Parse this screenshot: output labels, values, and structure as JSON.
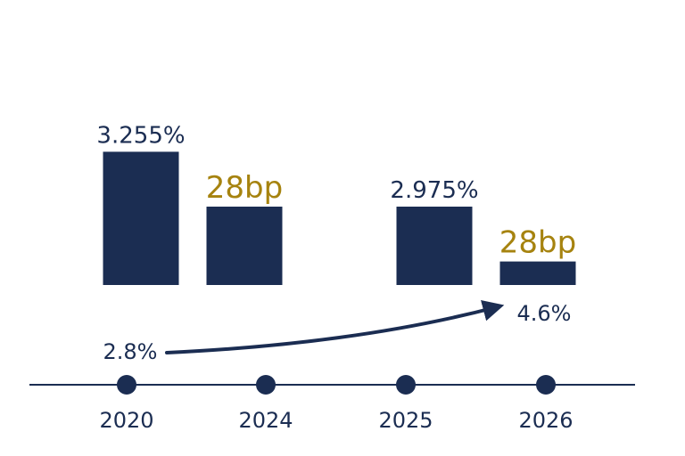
{
  "chart_data": {
    "type": "bar",
    "colors": {
      "bar": "#1b2d52",
      "highlight": "#a6830f",
      "axis": "#1b2d52"
    },
    "bars": [
      {
        "value": 3.255,
        "label": "3.255%"
      },
      {
        "value": 2.975,
        "label": "28bp"
      },
      {
        "value": 2.975,
        "label": "2.975%"
      },
      {
        "value": 2.695,
        "label": "28bp"
      }
    ],
    "timeline": [
      "2020",
      "2024",
      "2025",
      "2026"
    ],
    "arrow": {
      "from_label": "2.8%",
      "to_label": "4.6%"
    }
  }
}
